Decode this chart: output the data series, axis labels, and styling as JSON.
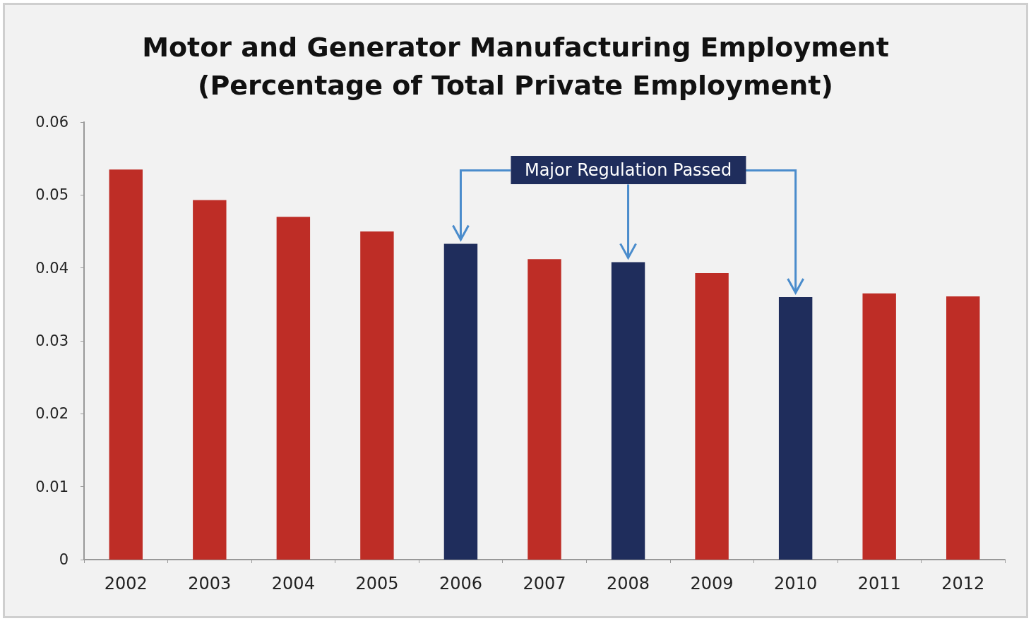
{
  "chart_data": {
    "type": "bar",
    "title": "Motor and Generator Manufacturing Employment\n(Percentage of Total Private Employment)",
    "categories": [
      "2002",
      "2003",
      "2004",
      "2005",
      "2006",
      "2007",
      "2008",
      "2009",
      "2010",
      "2011",
      "2012"
    ],
    "values": [
      0.0535,
      0.0493,
      0.047,
      0.045,
      0.0433,
      0.0412,
      0.0408,
      0.0393,
      0.036,
      0.0365,
      0.0361
    ],
    "colors": [
      "#be2d26",
      "#be2d26",
      "#be2d26",
      "#be2d26",
      "#1f2d5c",
      "#be2d26",
      "#1f2d5c",
      "#be2d26",
      "#1f2d5c",
      "#be2d26",
      "#be2d26"
    ],
    "ylim": [
      0,
      0.06
    ],
    "yticks": [
      0,
      0.01,
      0.02,
      0.03,
      0.04,
      0.05,
      0.06
    ],
    "grid": false,
    "annotations": [
      {
        "text": "Major Regulation Passed",
        "x": "2008",
        "y": 0.0408
      }
    ]
  }
}
